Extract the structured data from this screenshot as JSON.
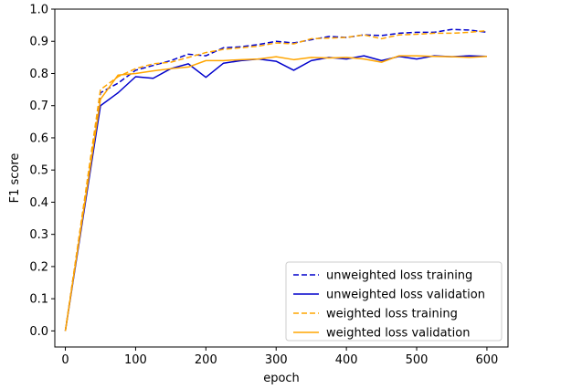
{
  "chart_data": {
    "type": "line",
    "xlabel": "epoch",
    "ylabel": "F1 score",
    "xlim": [
      -15,
      630
    ],
    "ylim": [
      -0.05,
      1.0
    ],
    "xticks": [
      0,
      100,
      200,
      300,
      400,
      500,
      600
    ],
    "yticks": [
      0.0,
      0.1,
      0.2,
      0.3,
      0.4,
      0.5,
      0.6,
      0.7,
      0.8,
      0.9,
      1.0
    ],
    "xtick_labels": [
      "0",
      "100",
      "200",
      "300",
      "400",
      "500",
      "600"
    ],
    "ytick_labels": [
      "0.0",
      "0.1",
      "0.2",
      "0.3",
      "0.4",
      "0.5",
      "0.6",
      "0.7",
      "0.8",
      "0.9",
      "1.0"
    ],
    "grid": false,
    "legend_position": "lower-right",
    "x": [
      0,
      50,
      75,
      100,
      125,
      150,
      175,
      200,
      225,
      250,
      275,
      300,
      325,
      350,
      375,
      400,
      425,
      450,
      475,
      500,
      525,
      550,
      575,
      600
    ],
    "series": [
      {
        "name": "unweighted loss training",
        "color": "#0000cc",
        "dash": true,
        "values": [
          0.0,
          0.74,
          0.77,
          0.81,
          0.825,
          0.84,
          0.86,
          0.855,
          0.88,
          0.883,
          0.89,
          0.9,
          0.895,
          0.905,
          0.915,
          0.912,
          0.92,
          0.918,
          0.925,
          0.928,
          0.928,
          0.937,
          0.935,
          0.928
        ]
      },
      {
        "name": "unweighted loss validation",
        "color": "#0000cc",
        "dash": false,
        "values": [
          0.0,
          0.7,
          0.74,
          0.79,
          0.785,
          0.815,
          0.83,
          0.788,
          0.832,
          0.84,
          0.845,
          0.838,
          0.81,
          0.84,
          0.85,
          0.845,
          0.855,
          0.84,
          0.853,
          0.845,
          0.855,
          0.852,
          0.855,
          0.853
        ]
      },
      {
        "name": "weighted loss training",
        "color": "#ffa500",
        "dash": true,
        "values": [
          0.0,
          0.75,
          0.79,
          0.815,
          0.83,
          0.835,
          0.85,
          0.865,
          0.875,
          0.88,
          0.885,
          0.895,
          0.892,
          0.908,
          0.91,
          0.912,
          0.92,
          0.908,
          0.92,
          0.922,
          0.925,
          0.925,
          0.928,
          0.933
        ]
      },
      {
        "name": "weighted loss validation",
        "color": "#ffa500",
        "dash": false,
        "values": [
          0.0,
          0.72,
          0.795,
          0.8,
          0.808,
          0.815,
          0.82,
          0.84,
          0.84,
          0.843,
          0.845,
          0.852,
          0.843,
          0.85,
          0.848,
          0.85,
          0.845,
          0.835,
          0.855,
          0.855,
          0.853,
          0.852,
          0.85,
          0.853
        ]
      }
    ]
  }
}
